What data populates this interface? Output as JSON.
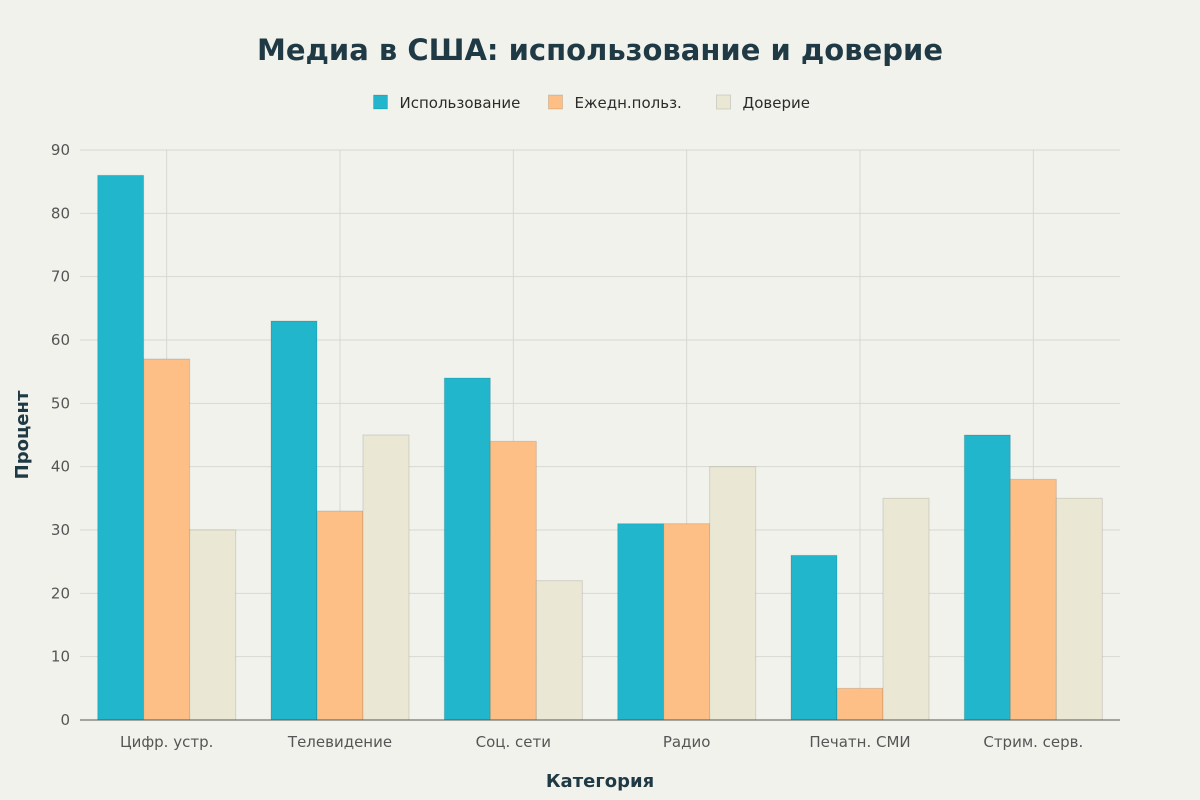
{
  "chart_data": {
    "type": "bar",
    "title": "Медиа в США: использование и доверие",
    "xlabel": "Категория",
    "ylabel": "Процент",
    "ylim": [
      0,
      90
    ],
    "yticks": [
      0,
      10,
      20,
      30,
      40,
      50,
      60,
      70,
      80,
      90
    ],
    "grid": true,
    "legend_position": "top-center",
    "categories": [
      "Цифр. устр.",
      "Телевидение",
      "Соц. сети",
      "Радио",
      "Печатн. СМИ",
      "Стрим. серв."
    ],
    "series": [
      {
        "name": "Использование",
        "color": "#21b6cc",
        "values": [
          86,
          63,
          54,
          31,
          26,
          45
        ]
      },
      {
        "name": "Ежедн.польз.",
        "color": "#fdbf85",
        "values": [
          57,
          33,
          44,
          31,
          5,
          38
        ]
      },
      {
        "name": "Доверие",
        "color": "#eae8d5",
        "values": [
          30,
          45,
          22,
          40,
          35,
          35
        ]
      }
    ]
  }
}
